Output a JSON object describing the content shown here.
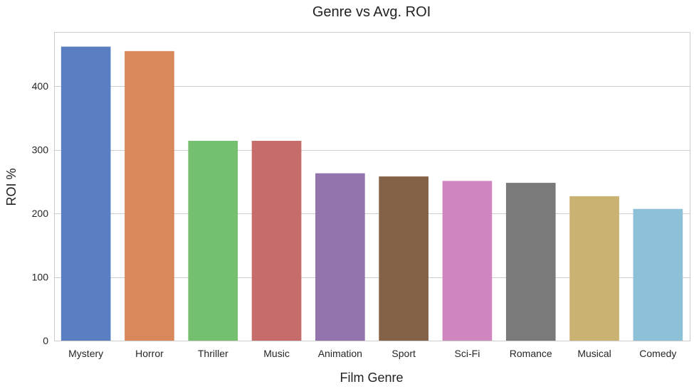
{
  "chart_data": {
    "type": "bar",
    "title": "Genre vs Avg. ROI",
    "xlabel": "Film Genre",
    "ylabel": "ROI %",
    "categories": [
      "Mystery",
      "Horror",
      "Thriller",
      "Music",
      "Animation",
      "Sport",
      "Sci-Fi",
      "Romance",
      "Musical",
      "Comedy"
    ],
    "values": [
      462,
      455,
      314,
      314,
      263,
      258,
      251,
      248,
      227,
      207
    ],
    "colors": [
      "#5a7ec2",
      "#d8885a",
      "#74c06f",
      "#c66c6b",
      "#9374ad",
      "#836248",
      "#d087bf",
      "#7a7a7a",
      "#c9b272",
      "#8dc1d7"
    ],
    "ylim": [
      0,
      485
    ],
    "yticks": [
      0,
      100,
      200,
      300,
      400
    ],
    "grid": true,
    "legend": "none"
  }
}
